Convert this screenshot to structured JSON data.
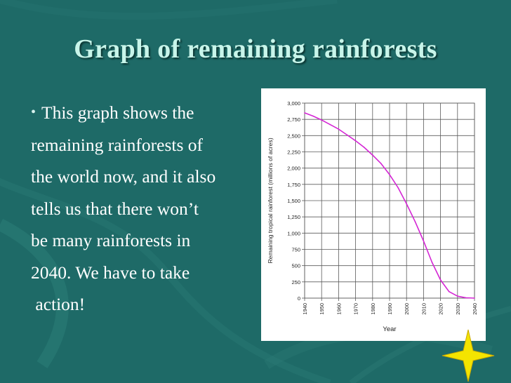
{
  "slide": {
    "title": "Graph of remaining rainforests",
    "bullet_lines": [
      "This graph shows the",
      "remaining rainforests of",
      "the world now, and it also",
      "tells us that there won’t",
      "be many rainforests in",
      "2040. We have to take",
      " action!"
    ]
  },
  "colors": {
    "background": "#1e6a67",
    "title": "#c8f5ea",
    "line": "#d426d4",
    "star": "#f4e400"
  },
  "chart_data": {
    "type": "line",
    "xlabel": "Year",
    "ylabel": "Remaining tropical rainforest (millions of acres)",
    "xlim": [
      1940,
      2040
    ],
    "ylim": [
      0,
      3000
    ],
    "x_ticks": [
      "1940",
      "1950",
      "1960",
      "1970",
      "1980",
      "1990",
      "2000",
      "2010",
      "2020",
      "2030",
      "2040"
    ],
    "y_ticks": [
      "0",
      "250",
      "500",
      "750",
      "1,000",
      "1,250",
      "1,500",
      "1,750",
      "2,000",
      "2,250",
      "2,500",
      "2,750",
      "3,000"
    ],
    "grid": true,
    "series": [
      {
        "x": [
          1940,
          1945,
          1950,
          1955,
          1960,
          1965,
          1970,
          1975,
          1980,
          1985,
          1990,
          1995,
          2000,
          2005,
          2010,
          2015,
          2020,
          2025,
          2030,
          2035,
          2040
        ],
        "values": [
          2850,
          2800,
          2740,
          2670,
          2600,
          2510,
          2420,
          2320,
          2200,
          2070,
          1900,
          1700,
          1450,
          1180,
          880,
          550,
          280,
          100,
          30,
          5,
          0
        ]
      }
    ]
  }
}
